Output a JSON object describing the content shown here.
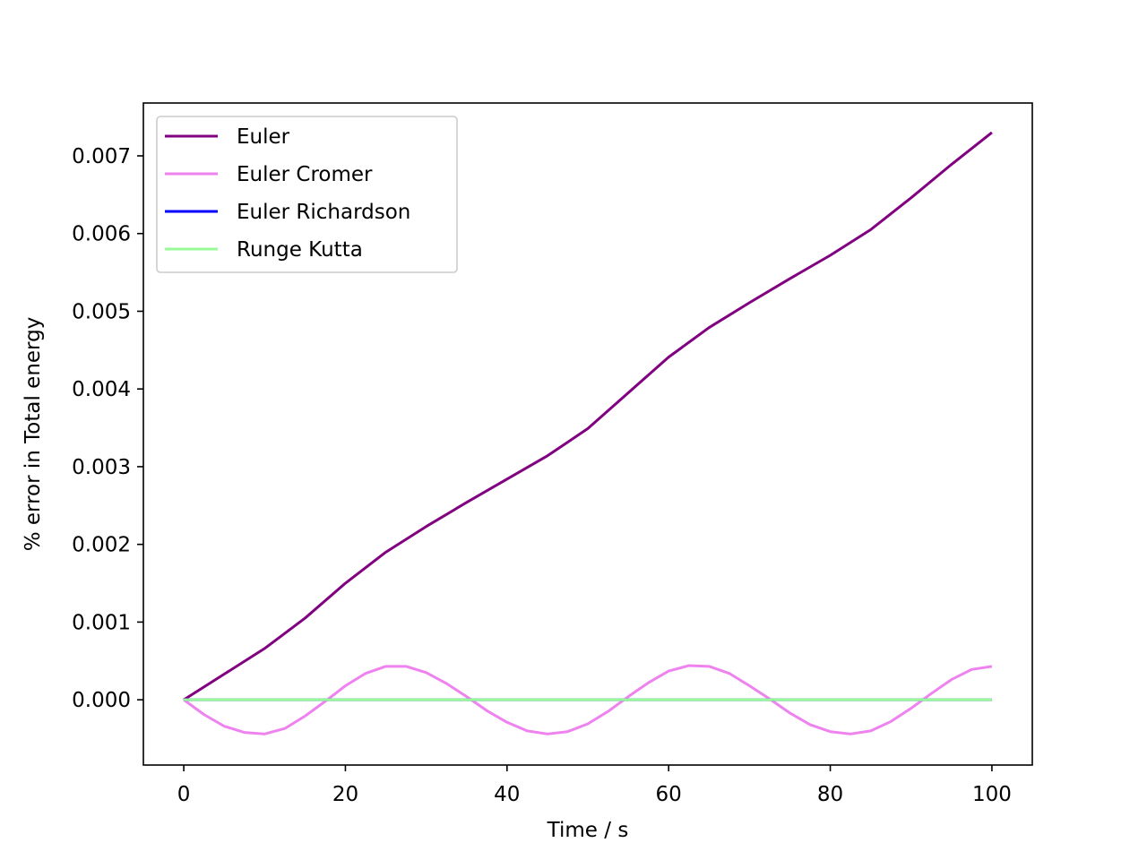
{
  "chart_data": {
    "type": "line",
    "title": "",
    "xlabel": "Time / s",
    "ylabel": "% error in Total energy",
    "xlim": [
      -5,
      105
    ],
    "ylim": [
      -0.00084,
      0.00768
    ],
    "xticks": [
      0,
      20,
      40,
      60,
      80,
      100
    ],
    "yticks": [
      0.0,
      0.001,
      0.002,
      0.003,
      0.004,
      0.005,
      0.006,
      0.007
    ],
    "xtick_labels": [
      "0",
      "20",
      "40",
      "60",
      "80",
      "100"
    ],
    "ytick_labels": [
      "0.000",
      "0.001",
      "0.002",
      "0.003",
      "0.004",
      "0.005",
      "0.006",
      "0.007"
    ],
    "grid": false,
    "legend_position": "top-left",
    "series": [
      {
        "name": "Euler",
        "color": "#800080",
        "x": [
          0,
          5,
          10,
          15,
          20,
          25,
          30,
          35,
          40,
          45,
          50,
          55,
          60,
          65,
          70,
          75,
          80,
          85,
          90,
          95,
          100
        ],
        "y": [
          0.0,
          0.00033,
          0.00066,
          0.00105,
          0.0015,
          0.0019,
          0.00223,
          0.00254,
          0.00284,
          0.00314,
          0.00349,
          0.00395,
          0.00441,
          0.00479,
          0.00511,
          0.00542,
          0.00572,
          0.00605,
          0.00646,
          0.00689,
          0.0073
        ]
      },
      {
        "name": "Euler Cromer",
        "color": "#ee82ee",
        "x": [
          0,
          2.5,
          5,
          7.5,
          10,
          12.5,
          15,
          17.5,
          20,
          22.5,
          25,
          27.5,
          30,
          32.5,
          35,
          37.5,
          40,
          42.5,
          45,
          47.5,
          50,
          52.5,
          55,
          57.5,
          60,
          62.5,
          65,
          67.5,
          70,
          72.5,
          75,
          77.5,
          80,
          82.5,
          85,
          87.5,
          90,
          92.5,
          95,
          97.5,
          100
        ],
        "y": [
          0.0,
          -0.00019,
          -0.00034,
          -0.00042,
          -0.00044,
          -0.00037,
          -0.00021,
          -2e-05,
          0.00018,
          0.00034,
          0.00043,
          0.00043,
          0.00035,
          0.00021,
          4e-05,
          -0.00014,
          -0.00029,
          -0.0004,
          -0.00044,
          -0.00041,
          -0.00031,
          -0.00015,
          4e-05,
          0.00022,
          0.00037,
          0.00044,
          0.00043,
          0.00034,
          0.00018,
          1e-05,
          -0.00017,
          -0.00032,
          -0.00041,
          -0.00044,
          -0.0004,
          -0.00028,
          -0.00011,
          8e-05,
          0.00026,
          0.00039,
          0.00043
        ]
      },
      {
        "name": "Euler Richardson",
        "color": "#0000ff",
        "x": [
          0,
          100
        ],
        "y": [
          0.0,
          0.0
        ]
      },
      {
        "name": "Runge Kutta",
        "color": "#98fb98",
        "x": [
          0,
          100
        ],
        "y": [
          0.0,
          0.0
        ]
      }
    ]
  }
}
